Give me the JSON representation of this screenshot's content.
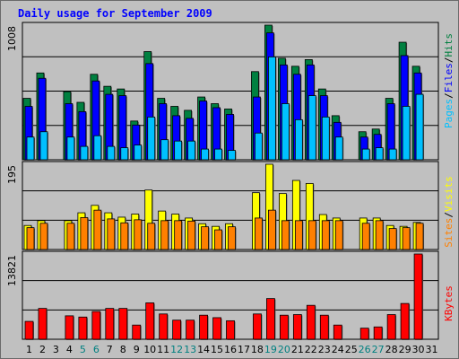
{
  "title": "Daily usage for September 2009",
  "colors": {
    "pages": "#00c0ff",
    "files": "#0000ff",
    "hits": "#008040",
    "visits": "#ffff00",
    "sites": "#ff8000",
    "kbytes": "#ff0000",
    "weekday_label": "#000000",
    "weekend_label": "#008080",
    "frame": "#c0c0c0"
  },
  "chart_data": [
    {
      "type": "bar",
      "name": "hits-files-pages",
      "y_max_label": "1008",
      "ylim": [
        0,
        1008
      ],
      "legend": [
        "Pages",
        "Files",
        "Hits"
      ],
      "categories": [
        "1",
        "2",
        "3",
        "4",
        "5",
        "6",
        "7",
        "8",
        "9",
        "10",
        "11",
        "12",
        "13",
        "14",
        "15",
        "16",
        "17",
        "18",
        "19",
        "20",
        "21",
        "22",
        "23",
        "24",
        "25",
        "26",
        "27",
        "28",
        "29",
        "30",
        "31"
      ],
      "series": [
        {
          "name": "Hits",
          "values": [
            460,
            650,
            0,
            510,
            430,
            640,
            550,
            530,
            290,
            810,
            460,
            400,
            370,
            470,
            420,
            380,
            0,
            660,
            1008,
            760,
            700,
            750,
            530,
            330,
            0,
            210,
            230,
            460,
            880,
            700,
            0
          ]
        },
        {
          "name": "Files",
          "values": [
            400,
            610,
            0,
            420,
            360,
            590,
            490,
            480,
            260,
            720,
            420,
            330,
            310,
            440,
            390,
            340,
            0,
            470,
            950,
            710,
            640,
            710,
            480,
            280,
            0,
            170,
            190,
            420,
            780,
            650,
            0
          ]
        },
        {
          "name": "Pages",
          "values": [
            170,
            210,
            0,
            170,
            100,
            180,
            100,
            90,
            110,
            320,
            150,
            140,
            140,
            80,
            80,
            70,
            0,
            200,
            770,
            420,
            300,
            480,
            320,
            170,
            0,
            80,
            90,
            80,
            400,
            490,
            0
          ]
        }
      ]
    },
    {
      "type": "bar",
      "name": "visits-sites",
      "y_max_label": "195",
      "ylim": [
        0,
        195
      ],
      "legend": [
        "Sites",
        "Visits"
      ],
      "categories": [
        "1",
        "2",
        "3",
        "4",
        "5",
        "6",
        "7",
        "8",
        "9",
        "10",
        "11",
        "12",
        "13",
        "14",
        "15",
        "16",
        "17",
        "18",
        "19",
        "20",
        "21",
        "22",
        "23",
        "24",
        "25",
        "26",
        "27",
        "28",
        "29",
        "30",
        "31"
      ],
      "series": [
        {
          "name": "Visits",
          "values": [
            55,
            66,
            0,
            66,
            84,
            101,
            84,
            74,
            81,
            136,
            88,
            81,
            72,
            59,
            53,
            59,
            0,
            130,
            195,
            128,
            158,
            151,
            80,
            72,
            0,
            72,
            72,
            55,
            53,
            62,
            0
          ]
        },
        {
          "name": "Sites",
          "values": [
            50,
            60,
            0,
            60,
            73,
            90,
            70,
            61,
            68,
            60,
            66,
            66,
            65,
            52,
            45,
            52,
            0,
            72,
            90,
            66,
            66,
            66,
            66,
            66,
            0,
            60,
            66,
            48,
            50,
            60,
            0
          ]
        }
      ]
    },
    {
      "type": "bar",
      "name": "kbytes",
      "y_max_label": "13821",
      "ylim": [
        0,
        13821
      ],
      "legend": [
        "KBytes"
      ],
      "categories": [
        "1",
        "2",
        "3",
        "4",
        "5",
        "6",
        "7",
        "8",
        "9",
        "10",
        "11",
        "12",
        "13",
        "14",
        "15",
        "16",
        "17",
        "18",
        "19",
        "20",
        "21",
        "22",
        "23",
        "24",
        "25",
        "26",
        "27",
        "28",
        "29",
        "30",
        "31"
      ],
      "series": [
        {
          "name": "KBytes",
          "values": [
            2900,
            5000,
            0,
            3800,
            3600,
            4500,
            5000,
            5000,
            2300,
            5900,
            4100,
            3100,
            3100,
            3900,
            3500,
            3000,
            0,
            4100,
            6600,
            3900,
            4000,
            5500,
            3900,
            2300,
            0,
            1800,
            2000,
            4000,
            5800,
            13821,
            0
          ]
        }
      ]
    }
  ],
  "x_labels": [
    {
      "text": "1",
      "weekend": false
    },
    {
      "text": "2",
      "weekend": false
    },
    {
      "text": "3",
      "weekend": false
    },
    {
      "text": "4",
      "weekend": false
    },
    {
      "text": "5",
      "weekend": true
    },
    {
      "text": "6",
      "weekend": true
    },
    {
      "text": "7",
      "weekend": false
    },
    {
      "text": "8",
      "weekend": false
    },
    {
      "text": "9",
      "weekend": false
    },
    {
      "text": "10",
      "weekend": false
    },
    {
      "text": "11",
      "weekend": false
    },
    {
      "text": "12",
      "weekend": true
    },
    {
      "text": "13",
      "weekend": true
    },
    {
      "text": "14",
      "weekend": false
    },
    {
      "text": "15",
      "weekend": false
    },
    {
      "text": "16",
      "weekend": false
    },
    {
      "text": "17",
      "weekend": false
    },
    {
      "text": "18",
      "weekend": false
    },
    {
      "text": "19",
      "weekend": true
    },
    {
      "text": "20",
      "weekend": true
    },
    {
      "text": "21",
      "weekend": false
    },
    {
      "text": "22",
      "weekend": false
    },
    {
      "text": "23",
      "weekend": false
    },
    {
      "text": "24",
      "weekend": false
    },
    {
      "text": "25",
      "weekend": false
    },
    {
      "text": "26",
      "weekend": true
    },
    {
      "text": "27",
      "weekend": true
    },
    {
      "text": "28",
      "weekend": false
    },
    {
      "text": "29",
      "weekend": false
    },
    {
      "text": "30",
      "weekend": false
    },
    {
      "text": "31",
      "weekend": false
    }
  ]
}
